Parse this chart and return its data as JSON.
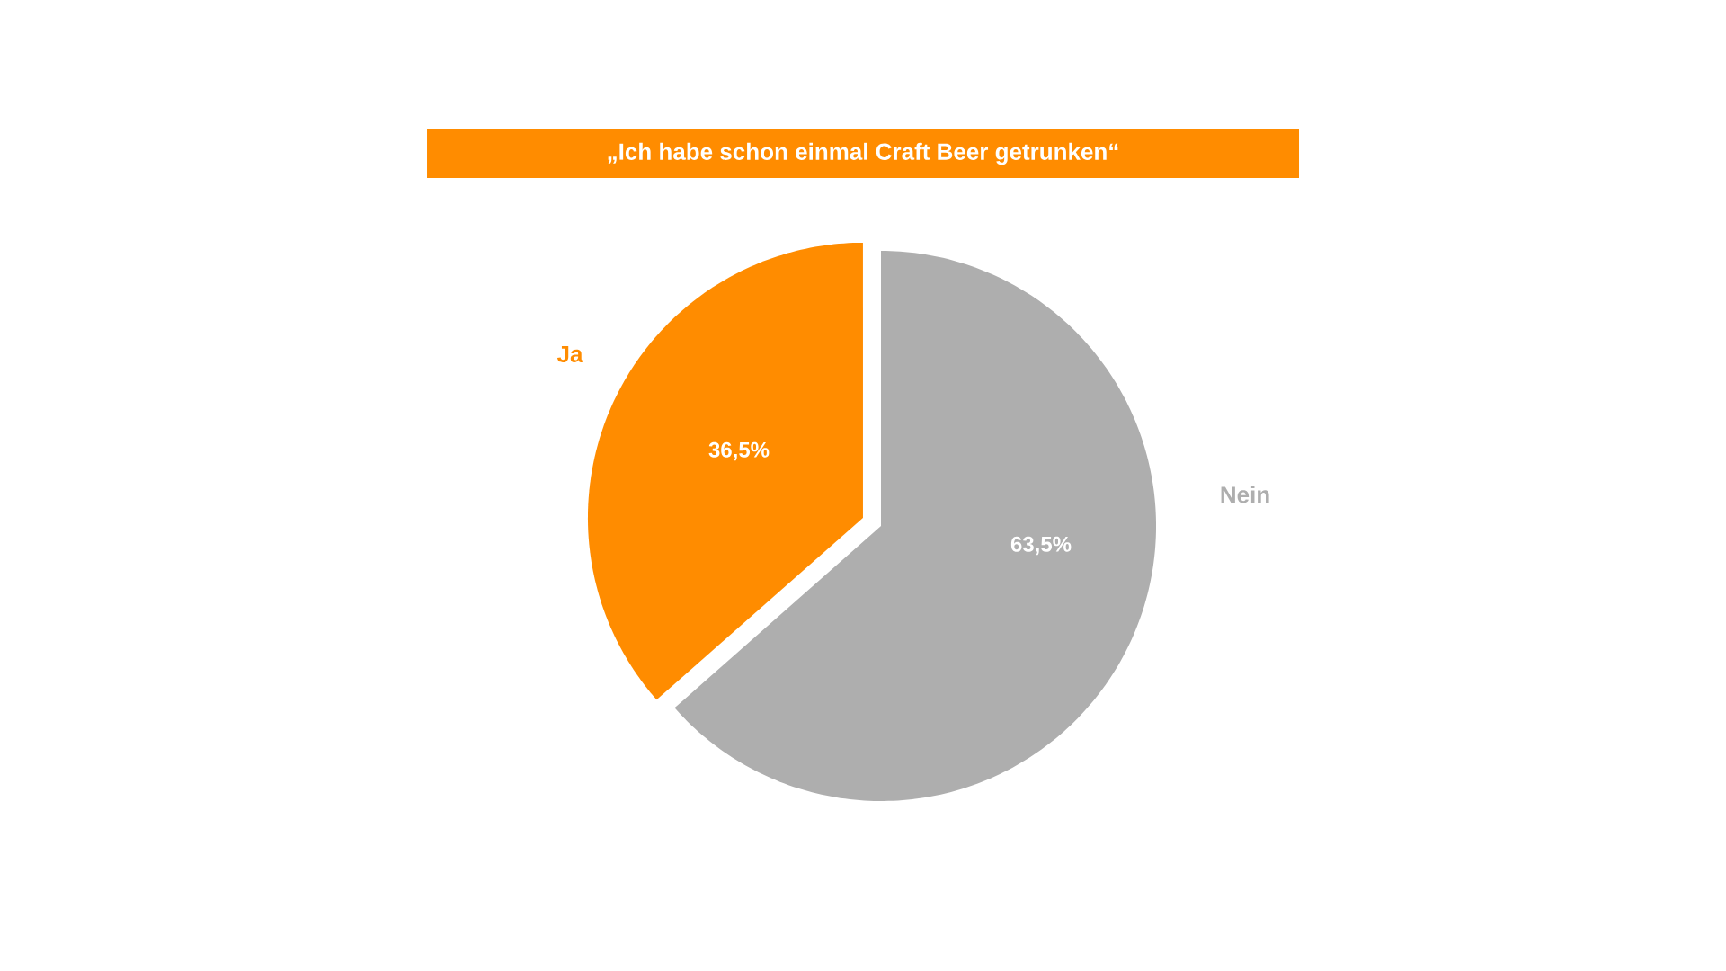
{
  "chart_data": {
    "type": "pie",
    "title": "„Ich habe schon einmal Craft Beer getrunken“",
    "categories": [
      "Ja",
      "Nein"
    ],
    "values": [
      36.5,
      63.5
    ],
    "value_labels": [
      "36,5%",
      "63,5%"
    ],
    "colors": [
      "#ff8c00",
      "#aeaeae"
    ]
  }
}
